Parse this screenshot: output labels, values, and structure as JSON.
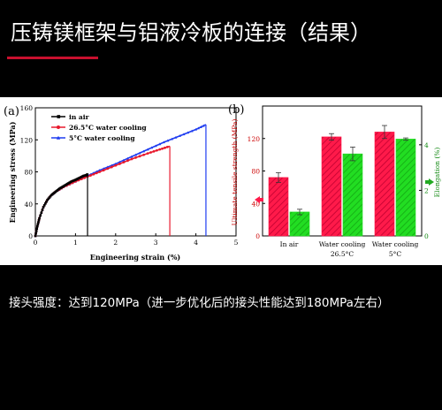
{
  "slide": {
    "title": "压铸镁框架与铝液冷板的连接（结果）",
    "caption": "接头强度：达到120MPa（进一步优化后的接头性能达到180MPa左右）"
  },
  "colors": {
    "background": "#000000",
    "accent_underline": "#c8102e",
    "series_in_air": "#000000",
    "series_26_5C": "#e8182c",
    "series_5C": "#1e3cf0",
    "bar_uts": "#ff1a4a",
    "bar_elongation": "#22dd22",
    "axis_uts": "#cc0000",
    "axis_elongation": "#118811"
  },
  "chart_data": [
    {
      "type": "line",
      "panel_label": "(a)",
      "xlabel": "Engineering strain (%)",
      "ylabel": "Engineering stress (MPa)",
      "xlim": [
        0,
        5
      ],
      "ylim": [
        0,
        160
      ],
      "xticks": [
        "0",
        "1",
        "2",
        "3",
        "4",
        "5"
      ],
      "yticks": [
        "0",
        "40",
        "80",
        "120",
        "160"
      ],
      "legend_position": "top-left",
      "series": [
        {
          "name": "in air",
          "color": "#000000",
          "marker": "square",
          "points": [
            [
              0,
              0
            ],
            [
              0.05,
              12
            ],
            [
              0.1,
              22
            ],
            [
              0.2,
              36
            ],
            [
              0.3,
              45
            ],
            [
              0.4,
              51
            ],
            [
              0.5,
              55
            ],
            [
              0.6,
              59
            ],
            [
              0.7,
              62
            ],
            [
              0.8,
              65
            ],
            [
              0.9,
              68
            ],
            [
              1.0,
              70
            ],
            [
              1.1,
              72.5
            ],
            [
              1.2,
              75
            ],
            [
              1.28,
              76
            ],
            [
              1.3,
              77
            ]
          ],
          "fracture": [
            1.3,
            0
          ]
        },
        {
          "name": "26.5°C water cooling",
          "color": "#e8182c",
          "marker": "circle",
          "points": [
            [
              0,
              0
            ],
            [
              0.05,
              12
            ],
            [
              0.1,
              22
            ],
            [
              0.2,
              36
            ],
            [
              0.3,
              45
            ],
            [
              0.4,
              51
            ],
            [
              0.5,
              55
            ],
            [
              0.7,
              61
            ],
            [
              1.0,
              68
            ],
            [
              1.3,
              74
            ],
            [
              1.6,
              80
            ],
            [
              2.0,
              88
            ],
            [
              2.4,
              96
            ],
            [
              2.8,
              103
            ],
            [
              3.1,
              108
            ],
            [
              3.35,
              112
            ]
          ],
          "fracture": [
            3.35,
            0
          ]
        },
        {
          "name": "5°C water cooling",
          "color": "#1e3cf0",
          "marker": "triangle",
          "points": [
            [
              0,
              0
            ],
            [
              0.05,
              12
            ],
            [
              0.1,
              22
            ],
            [
              0.2,
              36
            ],
            [
              0.3,
              45
            ],
            [
              0.4,
              51
            ],
            [
              0.5,
              55
            ],
            [
              0.7,
              61
            ],
            [
              1.0,
              68
            ],
            [
              1.3,
              75
            ],
            [
              1.6,
              82
            ],
            [
              2.0,
              90
            ],
            [
              2.4,
              99
            ],
            [
              2.8,
              108
            ],
            [
              3.2,
              117
            ],
            [
              3.6,
              125
            ],
            [
              4.0,
              133
            ],
            [
              4.25,
              139
            ]
          ],
          "fracture": [
            4.25,
            0
          ]
        }
      ]
    },
    {
      "type": "bar",
      "panel_label": "(b)",
      "categories": [
        "In air",
        "Water cooling 26.5°C",
        "Water cooling 5°C"
      ],
      "category_lines": [
        [
          "In air"
        ],
        [
          "Water cooling",
          "26.5°C"
        ],
        [
          "Water cooling",
          "5°C"
        ]
      ],
      "ylabel_left": "Ultimate tensile strength (MPa)",
      "ylabel_right": "Elongation (%)",
      "ylim_left": [
        0,
        160
      ],
      "ylim_right": [
        0,
        5.7
      ],
      "yticks_left": [
        "0",
        "40",
        "80",
        "120"
      ],
      "yticks_right": [
        "0",
        "2",
        "4"
      ],
      "series": [
        {
          "axis": "left",
          "color": "#ff1a4a",
          "values": [
            72,
            122,
            128
          ],
          "errors": [
            6,
            4,
            8
          ]
        },
        {
          "axis": "right",
          "color": "#22dd22",
          "values": [
            1.05,
            3.6,
            4.25
          ],
          "errors": [
            0.12,
            0.3,
            0.05
          ]
        }
      ]
    }
  ]
}
